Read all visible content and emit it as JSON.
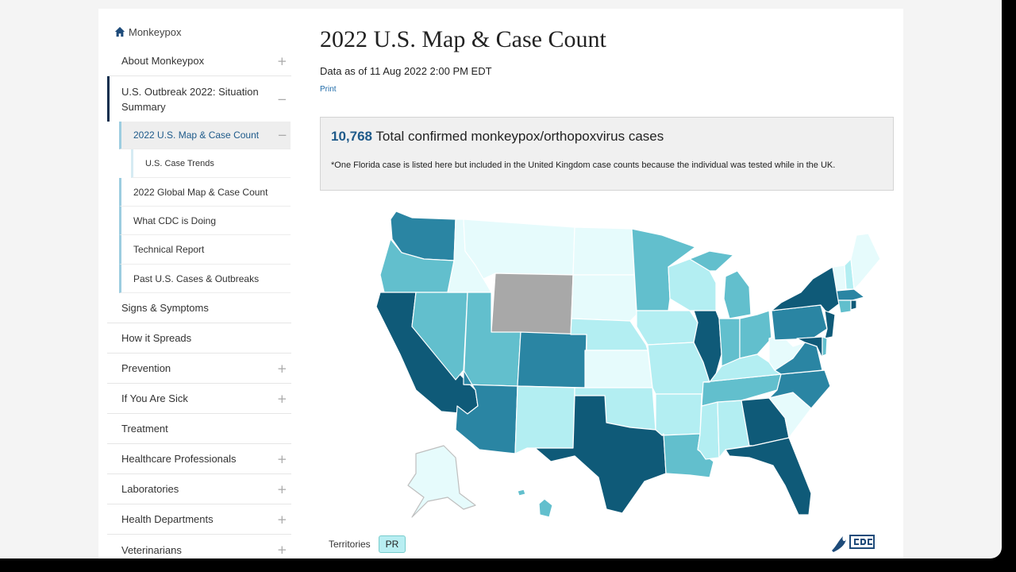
{
  "sidebar": {
    "home_label": "Monkeypox",
    "items": [
      {
        "label": "About Monkeypox",
        "toggle": "+"
      },
      {
        "label": "U.S. Outbreak 2022: Situation Summary",
        "toggle": "−"
      },
      {
        "label": "Signs & Symptoms",
        "toggle": ""
      },
      {
        "label": "How it Spreads",
        "toggle": ""
      },
      {
        "label": "Prevention",
        "toggle": "+"
      },
      {
        "label": "If You Are Sick",
        "toggle": "+"
      },
      {
        "label": "Treatment",
        "toggle": ""
      },
      {
        "label": "Healthcare Professionals",
        "toggle": "+"
      },
      {
        "label": "Laboratories",
        "toggle": "+"
      },
      {
        "label": "Health Departments",
        "toggle": "+"
      },
      {
        "label": "Veterinarians",
        "toggle": "+"
      }
    ],
    "sub_items": [
      {
        "label": "2022 U.S. Map & Case Count",
        "toggle": "−"
      },
      {
        "label": "U.S. Case Trends"
      },
      {
        "label": "2022 Global Map & Case Count"
      },
      {
        "label": "What CDC is Doing"
      },
      {
        "label": "Technical Report"
      },
      {
        "label": "Past U.S. Cases & Outbreaks"
      }
    ]
  },
  "main": {
    "title": "2022 U.S. Map & Case Count",
    "data_as_of": "Data as of 11 Aug 2022 2:00 PM EDT",
    "print_label": "Print",
    "total_count": "10,768",
    "total_label": " Total confirmed monkeypox/orthopoxvirus cases",
    "footnote": "*One Florida case is listed here but included in the United Kingdom case counts because the individual was tested while in the UK.",
    "territories_label": "Territories",
    "territory_pr": "PR"
  },
  "colors": {
    "darkest": "#0f5a78",
    "dark": "#2a85a3",
    "medium": "#62bfcd",
    "light": "#b3eef2",
    "lightest": "#e6fbfc",
    "nodata": "#a8a8a8",
    "link": "#1e6aa8",
    "active_nav": "#0f2e4d"
  }
}
